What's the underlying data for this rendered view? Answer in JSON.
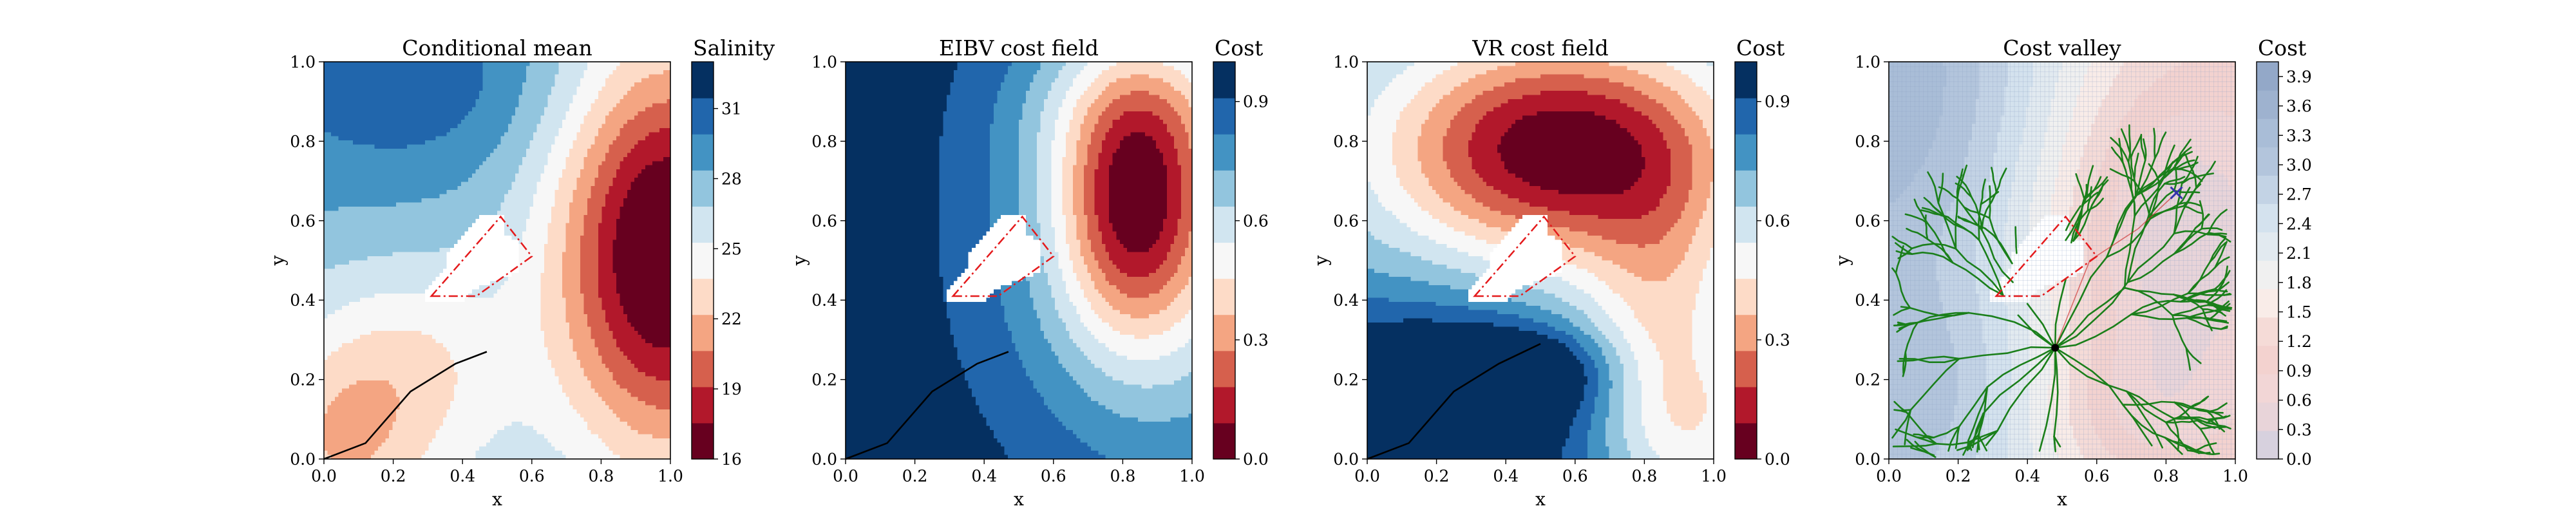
{
  "figure": {
    "background": "#ffffff"
  },
  "chart_data": [
    {
      "type": "heatmap",
      "title": "Conditional mean",
      "xlabel": "x",
      "ylabel": "y",
      "xlim": [
        0,
        1
      ],
      "ylim": [
        0,
        1
      ],
      "xticks": [
        "0.0",
        "0.2",
        "0.4",
        "0.6",
        "0.8",
        "1.0"
      ],
      "yticks": [
        "0.0",
        "0.2",
        "0.4",
        "0.6",
        "0.8",
        "1.0"
      ],
      "colorbar": {
        "label": "Salinity",
        "range": [
          16,
          33
        ],
        "ticks": [
          "16",
          "19",
          "22",
          "25",
          "28",
          "31"
        ],
        "tick_values": [
          16,
          19,
          22,
          25,
          28,
          31
        ],
        "colors": [
          "#67001f",
          "#b2182b",
          "#d6604d",
          "#f4a582",
          "#fddbc7",
          "#f7f7f7",
          "#d1e5f0",
          "#92c5de",
          "#4393c3",
          "#2166ac",
          "#053061"
        ]
      },
      "features": {
        "background_level": 27.5,
        "low_region_center": [
          0.15,
          0.12
        ],
        "high_region_center": [
          0.95,
          0.52
        ],
        "trajectory": [
          [
            0.0,
            0.0
          ],
          [
            0.12,
            0.04
          ],
          [
            0.25,
            0.17
          ],
          [
            0.38,
            0.24
          ],
          [
            0.47,
            0.27
          ]
        ],
        "obstacle": [
          [
            0.29,
            0.4
          ],
          [
            0.29,
            0.42
          ],
          [
            0.35,
            0.48
          ],
          [
            0.35,
            0.51
          ],
          [
            0.45,
            0.61
          ],
          [
            0.52,
            0.62
          ],
          [
            0.52,
            0.57
          ],
          [
            0.56,
            0.55
          ],
          [
            0.56,
            0.47
          ],
          [
            0.5,
            0.45
          ],
          [
            0.44,
            0.43
          ],
          [
            0.4,
            0.4
          ]
        ],
        "obstacle_outline": [
          [
            0.31,
            0.41
          ],
          [
            0.44,
            0.41
          ],
          [
            0.6,
            0.51
          ],
          [
            0.51,
            0.61
          ]
        ]
      }
    },
    {
      "type": "heatmap",
      "title": "EIBV cost field",
      "xlabel": "x",
      "ylabel": "y",
      "xlim": [
        0,
        1
      ],
      "ylim": [
        0,
        1
      ],
      "xticks": [
        "0.0",
        "0.2",
        "0.4",
        "0.6",
        "0.8",
        "1.0"
      ],
      "yticks": [
        "0.0",
        "0.2",
        "0.4",
        "0.6",
        "0.8",
        "1.0"
      ],
      "colorbar": {
        "label": "Cost",
        "range": [
          0,
          1
        ],
        "ticks": [
          "0.0",
          "0.3",
          "0.6",
          "0.9"
        ],
        "tick_values": [
          0,
          0.3,
          0.6,
          0.9
        ],
        "colors": [
          "#67001f",
          "#b2182b",
          "#d6604d",
          "#f4a582",
          "#fddbc7",
          "#f7f7f7",
          "#d1e5f0",
          "#92c5de",
          "#4393c3",
          "#2166ac",
          "#053061"
        ]
      },
      "features": {
        "background_level": 0.97,
        "low_region_center": [
          0.83,
          0.64
        ],
        "trajectory": [
          [
            0.0,
            0.0
          ],
          [
            0.12,
            0.04
          ],
          [
            0.25,
            0.17
          ],
          [
            0.38,
            0.24
          ],
          [
            0.47,
            0.27
          ]
        ],
        "obstacle": [
          [
            0.29,
            0.4
          ],
          [
            0.29,
            0.42
          ],
          [
            0.35,
            0.48
          ],
          [
            0.35,
            0.51
          ],
          [
            0.45,
            0.61
          ],
          [
            0.52,
            0.62
          ],
          [
            0.52,
            0.57
          ],
          [
            0.56,
            0.55
          ],
          [
            0.56,
            0.47
          ],
          [
            0.5,
            0.45
          ],
          [
            0.44,
            0.43
          ],
          [
            0.4,
            0.4
          ]
        ],
        "obstacle_outline": [
          [
            0.31,
            0.41
          ],
          [
            0.44,
            0.41
          ],
          [
            0.6,
            0.51
          ],
          [
            0.51,
            0.61
          ]
        ]
      }
    },
    {
      "type": "heatmap",
      "title": "VR cost field",
      "xlabel": "x",
      "ylabel": "y",
      "xlim": [
        0,
        1
      ],
      "ylim": [
        0,
        1
      ],
      "xticks": [
        "0.0",
        "0.2",
        "0.4",
        "0.6",
        "0.8",
        "1.0"
      ],
      "yticks": [
        "0.0",
        "0.2",
        "0.4",
        "0.6",
        "0.8",
        "1.0"
      ],
      "colorbar": {
        "label": "Cost",
        "range": [
          0,
          1
        ],
        "ticks": [
          "0.0",
          "0.3",
          "0.6",
          "0.9"
        ],
        "tick_values": [
          0,
          0.3,
          0.6,
          0.9
        ],
        "colors": [
          "#67001f",
          "#b2182b",
          "#d6604d",
          "#f4a582",
          "#fddbc7",
          "#f7f7f7",
          "#d1e5f0",
          "#92c5de",
          "#4393c3",
          "#2166ac",
          "#053061"
        ]
      },
      "features": {
        "low_region_center": [
          0.55,
          0.77
        ],
        "high_region_center": [
          0.15,
          0.1
        ],
        "trajectory": [
          [
            0.0,
            0.0
          ],
          [
            0.12,
            0.04
          ],
          [
            0.25,
            0.17
          ],
          [
            0.38,
            0.24
          ],
          [
            0.5,
            0.29
          ]
        ],
        "obstacle": [
          [
            0.29,
            0.4
          ],
          [
            0.29,
            0.42
          ],
          [
            0.35,
            0.48
          ],
          [
            0.35,
            0.51
          ],
          [
            0.45,
            0.61
          ],
          [
            0.52,
            0.62
          ],
          [
            0.52,
            0.57
          ],
          [
            0.56,
            0.55
          ],
          [
            0.56,
            0.47
          ],
          [
            0.5,
            0.45
          ],
          [
            0.44,
            0.43
          ],
          [
            0.4,
            0.4
          ]
        ],
        "obstacle_outline": [
          [
            0.31,
            0.41
          ],
          [
            0.44,
            0.41
          ],
          [
            0.6,
            0.51
          ],
          [
            0.51,
            0.61
          ]
        ]
      }
    },
    {
      "type": "heatmap",
      "title": "Cost valley",
      "xlabel": "x",
      "ylabel": "y",
      "xlim": [
        0,
        1
      ],
      "ylim": [
        0,
        1
      ],
      "xticks": [
        "0.0",
        "0.2",
        "0.4",
        "0.6",
        "0.8",
        "1.0"
      ],
      "yticks": [
        "0.0",
        "0.2",
        "0.4",
        "0.6",
        "0.8",
        "1.0"
      ],
      "colorbar": {
        "label": "Cost",
        "range": [
          0,
          4.05
        ],
        "ticks": [
          "0.0",
          "0.3",
          "0.6",
          "0.9",
          "1.2",
          "1.5",
          "1.8",
          "2.1",
          "2.4",
          "2.7",
          "3.0",
          "3.3",
          "3.6",
          "3.9"
        ],
        "tick_values": [
          0,
          0.3,
          0.6,
          0.9,
          1.2,
          1.5,
          1.8,
          2.1,
          2.4,
          2.7,
          3.0,
          3.3,
          3.6,
          3.9
        ],
        "colors": [
          "#d7d1de",
          "#e8d4d9",
          "#f2d6d6",
          "#f3d2cf",
          "#f5dbd7",
          "#f9ece8",
          "#f0f0f0",
          "#e2eaf0",
          "#d4e2ee",
          "#c3d3e5",
          "#b3c5dc",
          "#a9bdd7",
          "#9eb2cf",
          "#93a8c8"
        ]
      },
      "features": {
        "tree_root": [
          0.48,
          0.28
        ],
        "target": [
          0.83,
          0.67
        ],
        "tree_color": "#1a7f1a",
        "target_color": "#3333aa",
        "obstacle": [
          [
            0.29,
            0.4
          ],
          [
            0.29,
            0.42
          ],
          [
            0.35,
            0.48
          ],
          [
            0.35,
            0.51
          ],
          [
            0.45,
            0.61
          ],
          [
            0.52,
            0.62
          ],
          [
            0.52,
            0.57
          ],
          [
            0.56,
            0.55
          ],
          [
            0.56,
            0.47
          ],
          [
            0.5,
            0.45
          ],
          [
            0.44,
            0.43
          ],
          [
            0.4,
            0.4
          ]
        ],
        "obstacle_outline": [
          [
            0.31,
            0.41
          ],
          [
            0.44,
            0.41
          ],
          [
            0.6,
            0.51
          ],
          [
            0.51,
            0.61
          ]
        ]
      }
    }
  ]
}
